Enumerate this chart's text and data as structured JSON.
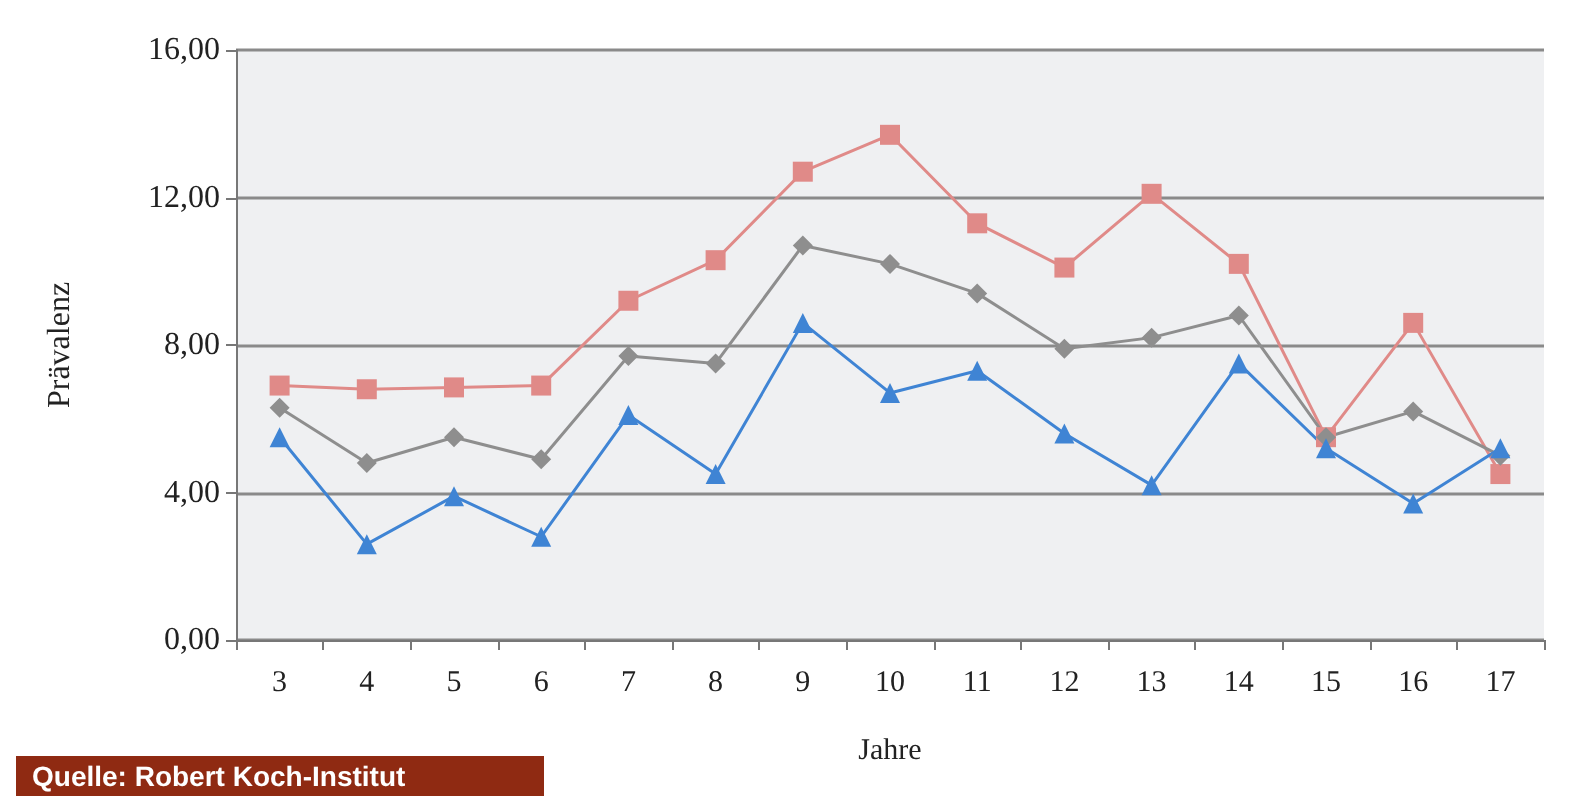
{
  "chart_data": {
    "type": "line",
    "xlabel": "Jahre",
    "ylabel": "Prävalenz",
    "categories": [
      "3",
      "4",
      "5",
      "6",
      "7",
      "8",
      "9",
      "10",
      "11",
      "12",
      "13",
      "14",
      "15",
      "16",
      "17"
    ],
    "series": [
      {
        "color": "#e08a88",
        "marker": "square",
        "values": [
          6.9,
          6.8,
          6.85,
          6.9,
          9.2,
          10.3,
          12.7,
          13.7,
          11.3,
          10.1,
          12.1,
          10.2,
          5.5,
          8.6,
          4.5
        ]
      },
      {
        "color": "#8e8e8e",
        "marker": "diamond",
        "values": [
          6.3,
          4.8,
          5.5,
          4.9,
          7.7,
          7.5,
          10.7,
          10.2,
          9.4,
          7.9,
          8.2,
          8.8,
          5.5,
          6.2,
          5.0
        ]
      },
      {
        "color": "#3f84d4",
        "marker": "triangle",
        "values": [
          5.5,
          2.6,
          3.9,
          2.8,
          6.1,
          4.5,
          8.6,
          6.7,
          7.3,
          5.6,
          4.2,
          7.5,
          5.2,
          3.7,
          5.2
        ]
      }
    ],
    "ylim": [
      0,
      16
    ],
    "yticks": [
      {
        "value": 0,
        "label": "0,00"
      },
      {
        "value": 4,
        "label": "4,00"
      },
      {
        "value": 8,
        "label": "8,00"
      },
      {
        "value": 12,
        "label": "12,00"
      },
      {
        "value": 16,
        "label": "16,00"
      }
    ],
    "grid": "y",
    "annotations": [
      "Quelle: Robert Koch-Institut"
    ]
  }
}
